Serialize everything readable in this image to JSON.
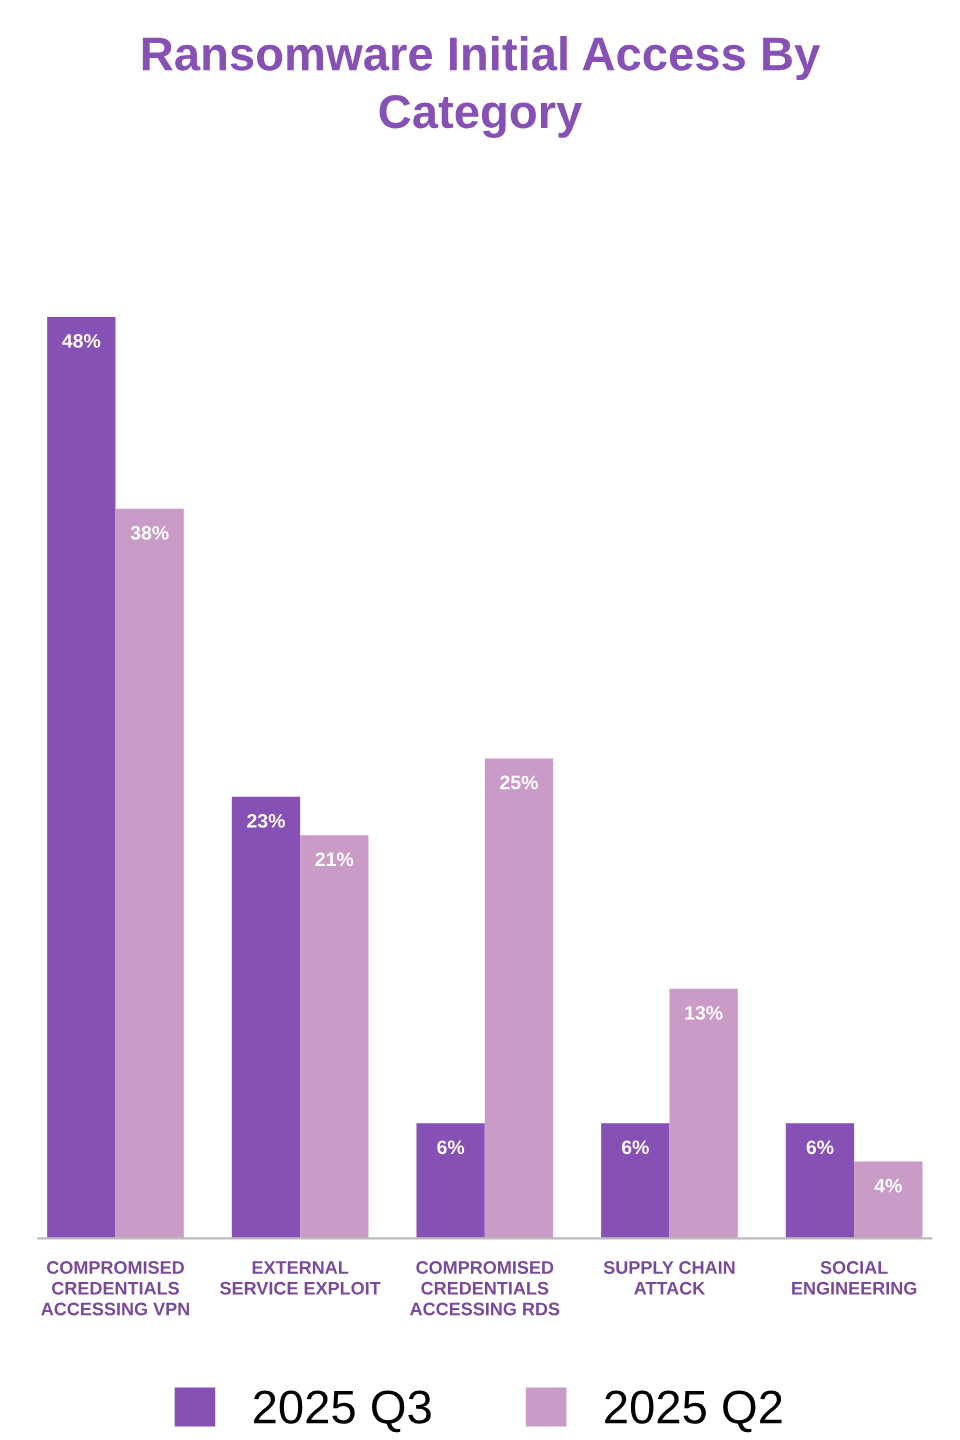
{
  "chart_data": {
    "type": "bar",
    "title": "Ransomware Initial Access By Category",
    "categories": [
      "COMPROMISED CREDENTIALS ACCESSING VPN",
      "EXTERNAL SERVICE EXPLOIT",
      "COMPROMISED CREDENTIALS ACCESSING RDS",
      "SUPPLY CHAIN ATTACK",
      "SOCIAL ENGINEERING"
    ],
    "series": [
      {
        "name": "2025 Q3",
        "color": "#8650b4",
        "values": [
          48,
          23,
          6,
          6,
          6
        ],
        "value_labels": [
          "48%",
          "23%",
          "6%",
          "6%",
          "6%"
        ]
      },
      {
        "name": "2025 Q2",
        "color": "#c99bc6",
        "values": [
          38,
          21,
          25,
          13,
          4
        ],
        "value_labels": [
          "38%",
          "21%",
          "25%",
          "13%",
          "4%"
        ]
      }
    ],
    "legend": "bottom",
    "grid": false
  }
}
